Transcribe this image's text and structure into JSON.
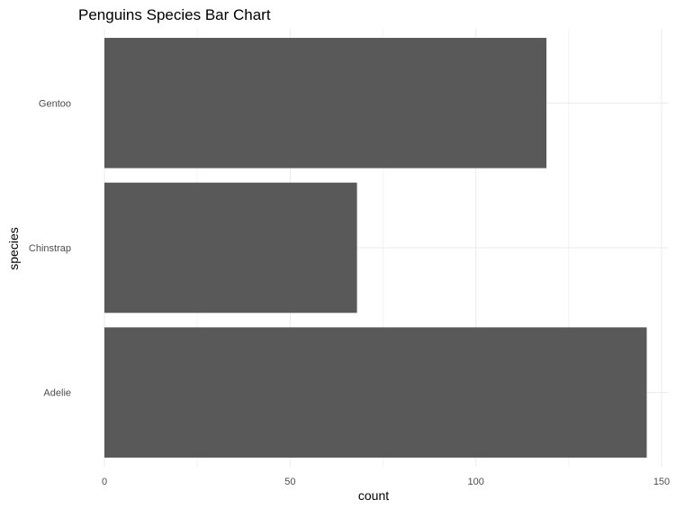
{
  "chart_data": {
    "type": "bar",
    "orientation": "horizontal",
    "title": "Penguins Species Bar Chart",
    "xlabel": "count",
    "ylabel": "species",
    "categories": [
      "Adelie",
      "Chinstrap",
      "Gentoo"
    ],
    "values": [
      146,
      68,
      119
    ],
    "xlim": [
      0,
      152
    ],
    "xticks": [
      0,
      50,
      100,
      150
    ],
    "bar_color": "#595959",
    "grid": true,
    "legend": "none"
  }
}
